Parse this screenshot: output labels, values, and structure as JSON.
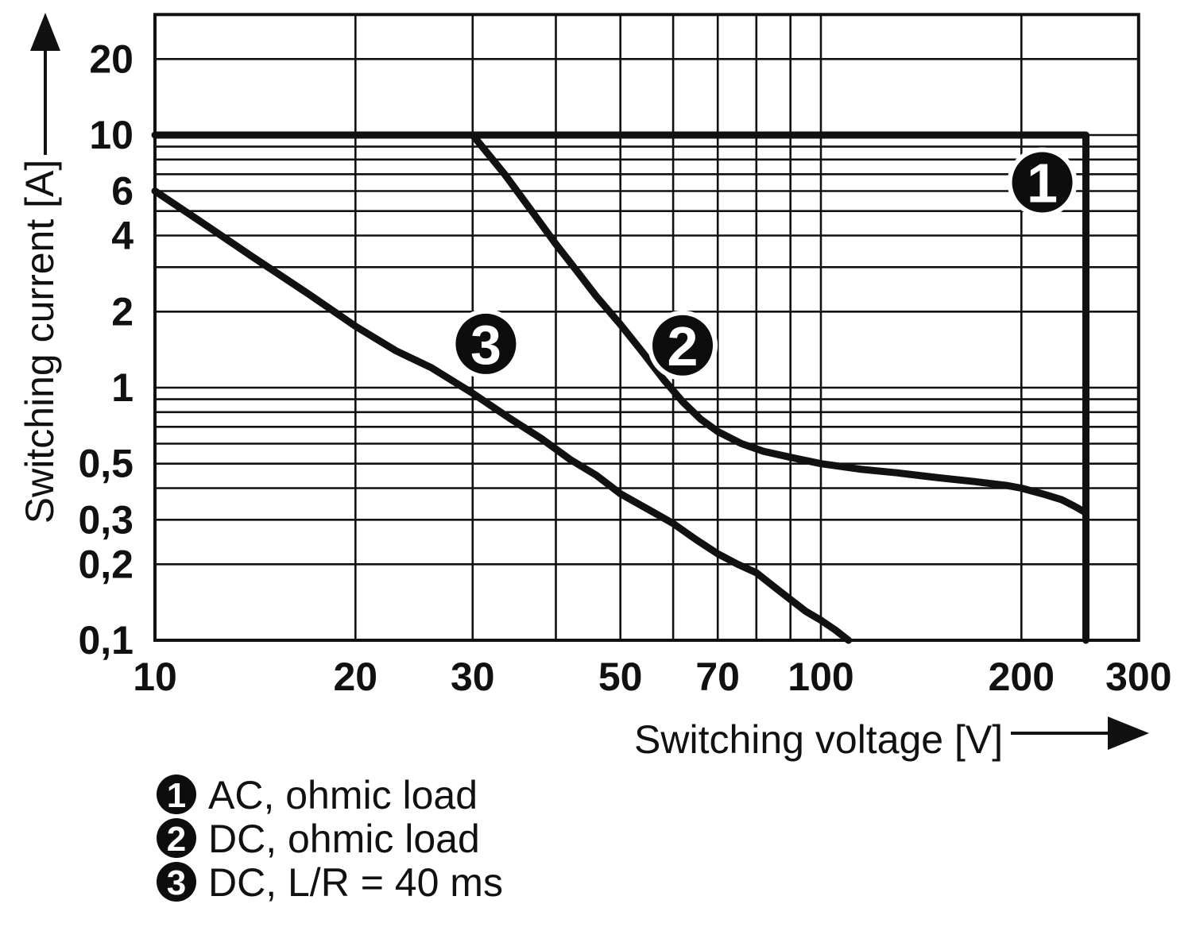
{
  "colors": {
    "ink": "#111111",
    "background": "#ffffff",
    "marker_fill": "#0d0d0d",
    "marker_text": "#ffffff"
  },
  "chart_data": {
    "type": "line",
    "title": "",
    "x_axis": {
      "label": "Switching voltage [V]",
      "scale": "log",
      "range": [
        10,
        300
      ],
      "ticks": [
        {
          "value": 10,
          "label": "10"
        },
        {
          "value": 20,
          "label": "20"
        },
        {
          "value": 30,
          "label": "30"
        },
        {
          "value": 50,
          "label": "50"
        },
        {
          "value": 70,
          "label": "70"
        },
        {
          "value": 100,
          "label": "100"
        },
        {
          "value": 200,
          "label": "200"
        },
        {
          "value": 300,
          "label": "300"
        }
      ],
      "gridlines": [
        20,
        30,
        40,
        50,
        60,
        70,
        80,
        90,
        100,
        200
      ]
    },
    "y_axis": {
      "label": "Switching current [A]",
      "scale": "log",
      "range": [
        0.1,
        30
      ],
      "ticks": [
        {
          "value": 20,
          "label": "20"
        },
        {
          "value": 10,
          "label": "10"
        },
        {
          "value": 6,
          "label": "6"
        },
        {
          "value": 4,
          "label": "4"
        },
        {
          "value": 2,
          "label": "2"
        },
        {
          "value": 1,
          "label": "1"
        },
        {
          "value": 0.5,
          "label": "0,5"
        },
        {
          "value": 0.3,
          "label": "0,3"
        },
        {
          "value": 0.2,
          "label": "0,2"
        },
        {
          "value": 0.1,
          "label": "0,1"
        }
      ],
      "gridlines": [
        20,
        10,
        9,
        8,
        7,
        6,
        5,
        4,
        3,
        2,
        1,
        0.9,
        0.8,
        0.7,
        0.6,
        0.5,
        0.4,
        0.3,
        0.2
      ]
    },
    "grid": true,
    "legend_position": "bottom-left",
    "series": [
      {
        "id": "1",
        "name": "AC, ohmic load",
        "points": [
          [
            10,
            10
          ],
          [
            250,
            10
          ],
          [
            250,
            0.1
          ]
        ]
      },
      {
        "id": "2",
        "name": "DC, ohmic load",
        "points": [
          [
            30,
            10
          ],
          [
            33.5,
            7
          ],
          [
            37,
            4.9
          ],
          [
            40,
            3.7
          ],
          [
            43,
            2.9
          ],
          [
            46,
            2.3
          ],
          [
            50,
            1.78
          ],
          [
            54,
            1.38
          ],
          [
            58,
            1.08
          ],
          [
            62,
            0.88
          ],
          [
            66,
            0.75
          ],
          [
            70,
            0.67
          ],
          [
            76,
            0.6
          ],
          [
            82,
            0.56
          ],
          [
            90,
            0.53
          ],
          [
            100,
            0.5
          ],
          [
            115,
            0.475
          ],
          [
            130,
            0.46
          ],
          [
            150,
            0.44
          ],
          [
            170,
            0.425
          ],
          [
            190,
            0.41
          ],
          [
            200,
            0.4
          ],
          [
            215,
            0.38
          ],
          [
            230,
            0.36
          ],
          [
            240,
            0.34
          ],
          [
            250,
            0.32
          ]
        ]
      },
      {
        "id": "3",
        "name": "DC, L/R = 40 ms",
        "points": [
          [
            10,
            6
          ],
          [
            12,
            4.35
          ],
          [
            14,
            3.3
          ],
          [
            17,
            2.35
          ],
          [
            20,
            1.75
          ],
          [
            23,
            1.4
          ],
          [
            26,
            1.2
          ],
          [
            30,
            0.95
          ],
          [
            34,
            0.76
          ],
          [
            38,
            0.63
          ],
          [
            42,
            0.52
          ],
          [
            46,
            0.45
          ],
          [
            50,
            0.38
          ],
          [
            55,
            0.33
          ],
          [
            60,
            0.29
          ],
          [
            65,
            0.25
          ],
          [
            70,
            0.22
          ],
          [
            75,
            0.2
          ],
          [
            80,
            0.185
          ],
          [
            85,
            0.163
          ],
          [
            90,
            0.145
          ],
          [
            95,
            0.13
          ],
          [
            100,
            0.12
          ],
          [
            105,
            0.11
          ],
          [
            110,
            0.1
          ]
        ]
      }
    ],
    "curve_markers": [
      {
        "label": "1",
        "x": 215,
        "y": 6.5
      },
      {
        "label": "2",
        "x": 62,
        "y": 1.47
      },
      {
        "label": "3",
        "x": 31.4,
        "y": 1.49
      }
    ]
  },
  "legend": {
    "items": [
      {
        "symbol": "1",
        "label": "AC, ohmic load"
      },
      {
        "symbol": "2",
        "label": "DC, ohmic load"
      },
      {
        "symbol": "3",
        "label": "DC, L/R = 40 ms"
      }
    ]
  }
}
